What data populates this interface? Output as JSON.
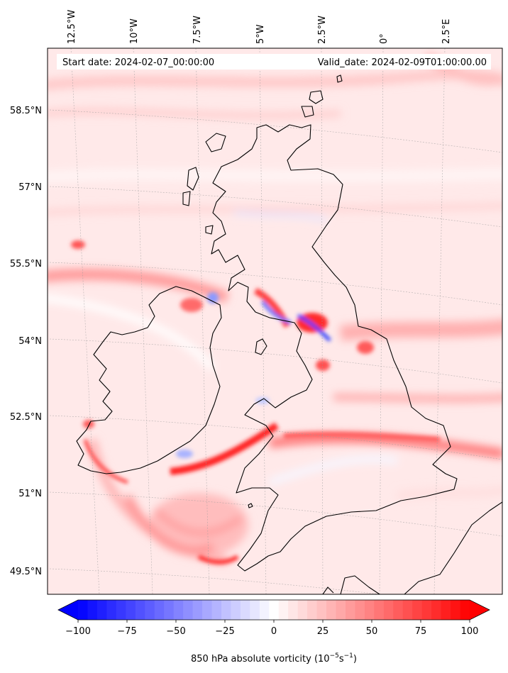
{
  "map": {
    "projection": "lambert-like conic",
    "field": "850 hPa absolute vorticity",
    "colormap": "bwr",
    "start_date": "Start date: 2024-02-07_00:00:00",
    "valid_date": "Valid_date: 2024-02-09T01:00:00.00",
    "lon_ticks": [
      "12.5°W",
      "10°W",
      "7.5°W",
      "5°W",
      "2.5°W",
      "0°",
      "2.5°E"
    ],
    "lat_ticks": [
      "58.5°N",
      "57°N",
      "55.5°N",
      "54°N",
      "52.5°N",
      "51°N",
      "49.5°N"
    ],
    "gridlines": true
  },
  "colorbar": {
    "min": -100,
    "max": 100,
    "levels": 41,
    "extend": "both",
    "ticks": [
      "−100",
      "−75",
      "−50",
      "−25",
      "0",
      "25",
      "50",
      "75",
      "100"
    ],
    "label_main": "850 hPa absolute vorticity (10",
    "label_sup1": "−5",
    "label_mid": "s",
    "label_sup2": "−1",
    "label_end": ")"
  }
}
